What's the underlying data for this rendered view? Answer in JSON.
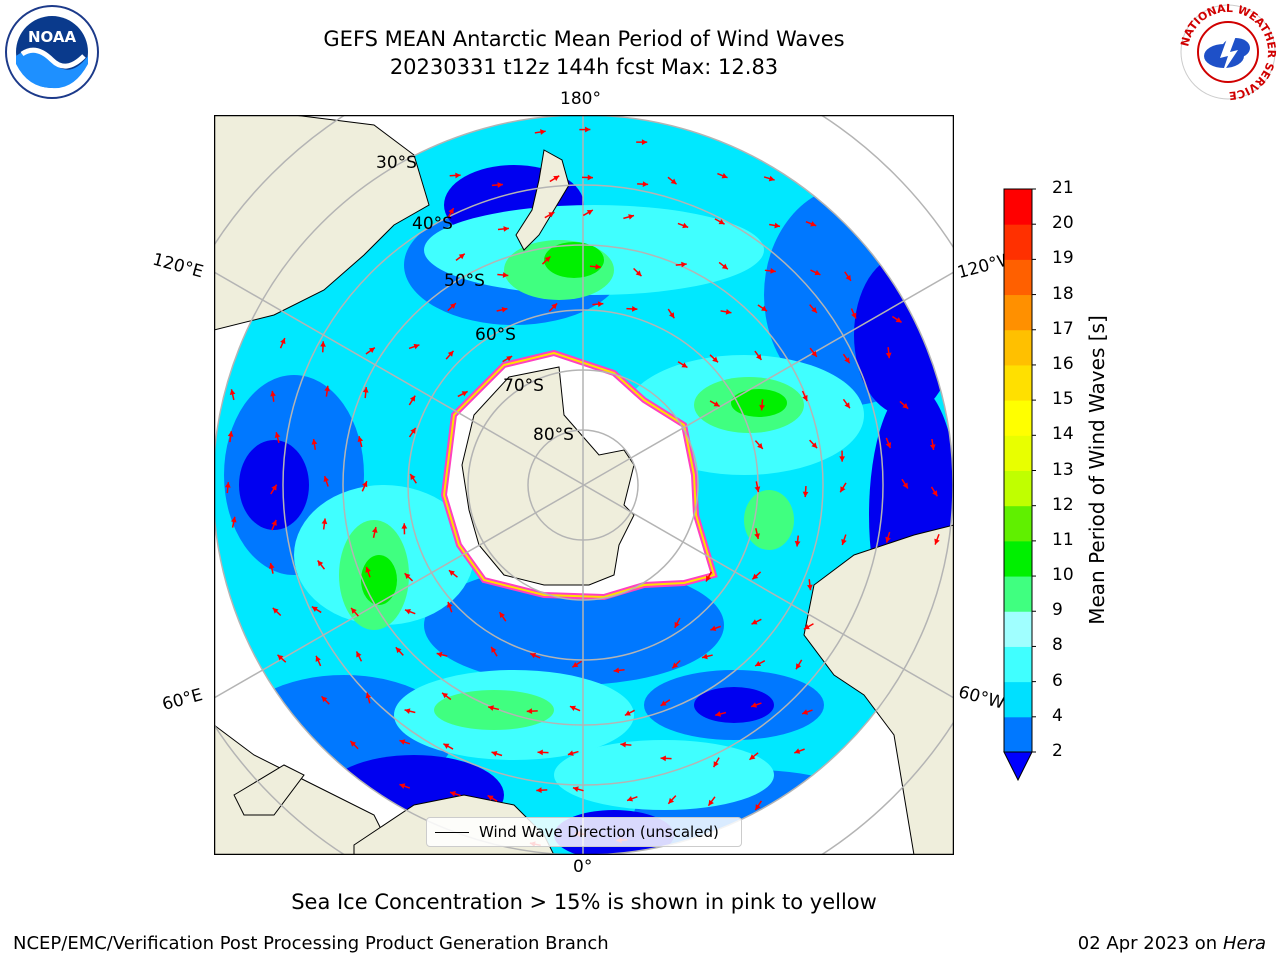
{
  "title": {
    "line1": "GEFS MEAN Antarctic Mean Period of Wind Waves",
    "line2": "20230331 t12z 144h fcst   Max: 12.83"
  },
  "map": {
    "projection": "south-polar-stereographic",
    "lon_labels": [
      "180°",
      "120°E",
      "120°W",
      "60°E",
      "60°W",
      "0°"
    ],
    "lat_labels": [
      "30°S",
      "40°S",
      "50°S",
      "60°S",
      "70°S",
      "80°S"
    ],
    "land_color": "#efeedc",
    "ocean_dominant_color": "#00f0ff",
    "arrow_color": "#ff0000",
    "sea_ice_edge_colors": [
      "#ff40c0",
      "#ffe000"
    ]
  },
  "colorbar": {
    "label": "Mean Period of Wind Waves [s]",
    "ticks": [
      "2",
      "4",
      "6",
      "8",
      "9",
      "10",
      "11",
      "12",
      "13",
      "14",
      "15",
      "16",
      "17",
      "18",
      "19",
      "20",
      "21"
    ],
    "colors": [
      "#0078ff",
      "#00e0ff",
      "#40ffff",
      "#a0ffff",
      "#40ff80",
      "#00f000",
      "#60f000",
      "#c0ff00",
      "#e8ff00",
      "#ffff00",
      "#ffe000",
      "#ffc000",
      "#ff9000",
      "#ff6000",
      "#ff3000",
      "#ff0000"
    ],
    "under_color": "#0000ff"
  },
  "legend": {
    "label": "Wind Wave Direction (unscaled)"
  },
  "note": "Sea Ice Concentration > 15% is shown in pink to yellow",
  "footer": {
    "left": "NCEP/EMC/Verification Post Processing Product Generation Branch",
    "date": "02 Apr 2023 on ",
    "machine": "Hera"
  },
  "logos": {
    "noaa_text": "NOAA",
    "nws_text": "NATIONAL WEATHER SERVICE"
  }
}
